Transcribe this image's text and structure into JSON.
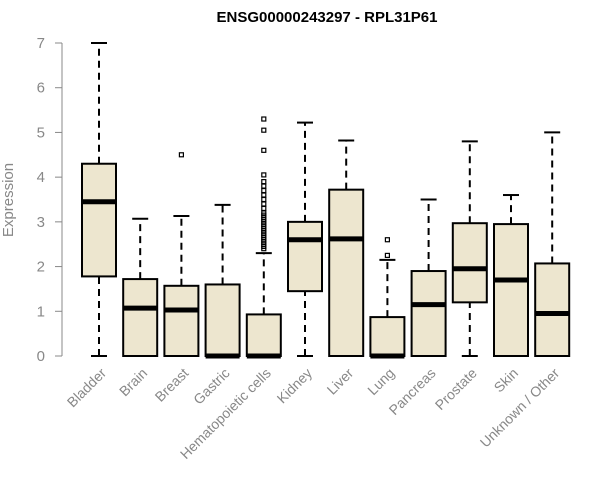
{
  "chart_data": {
    "type": "box",
    "title": "ENSG00000243297 - RPL31P61",
    "xlabel": "",
    "ylabel": "Expression",
    "ylim": [
      0,
      7
    ],
    "yticks": [
      "0",
      "1",
      "2",
      "3",
      "4",
      "5",
      "6",
      "7"
    ],
    "grid": false,
    "legend": "none",
    "colors": {
      "box_fill": "#ede6cf",
      "box_stroke": "#000000",
      "median": "#000000",
      "axis": "#888888",
      "text_axis": "#888888"
    },
    "categories": [
      "Bladder",
      "Brain",
      "Breast",
      "Gastric",
      "Hematopoietic cells",
      "Kidney",
      "Liver",
      "Lung",
      "Pancreas",
      "Prostate",
      "Skin",
      "Unknown / Other"
    ],
    "boxes": [
      {
        "min": 0,
        "q1": 1.78,
        "median": 3.45,
        "q3": 4.3,
        "max": 7.0,
        "outliers": []
      },
      {
        "min": 0,
        "q1": 0,
        "median": 1.07,
        "q3": 1.72,
        "max": 3.07,
        "outliers": []
      },
      {
        "min": 0,
        "q1": 0,
        "median": 1.03,
        "q3": 1.57,
        "max": 3.13,
        "outliers": [
          4.5
        ]
      },
      {
        "min": 0,
        "q1": 0,
        "median": 0,
        "q3": 1.6,
        "max": 3.38,
        "outliers": []
      },
      {
        "min": 0,
        "q1": 0,
        "median": 0,
        "q3": 0.93,
        "max": 2.3,
        "outliers": [
          2.4,
          2.45,
          2.5,
          2.55,
          2.6,
          2.65,
          2.7,
          2.75,
          2.8,
          2.85,
          2.9,
          2.95,
          3.0,
          3.05,
          3.1,
          3.15,
          3.2,
          3.3,
          3.4,
          3.5,
          3.6,
          3.7,
          3.8,
          3.9,
          4.05,
          4.6,
          5.05,
          5.3
        ]
      },
      {
        "min": 0,
        "q1": 1.45,
        "median": 2.6,
        "q3": 3.0,
        "max": 5.22,
        "outliers": []
      },
      {
        "min": 0,
        "q1": 0,
        "median": 2.62,
        "q3": 3.72,
        "max": 4.82,
        "outliers": []
      },
      {
        "min": 0,
        "q1": 0,
        "median": 0,
        "q3": 0.87,
        "max": 2.15,
        "outliers": [
          2.25,
          2.6
        ]
      },
      {
        "min": 0,
        "q1": 0,
        "median": 1.15,
        "q3": 1.9,
        "max": 3.5,
        "outliers": []
      },
      {
        "min": 0,
        "q1": 1.2,
        "median": 1.95,
        "q3": 2.97,
        "max": 4.8,
        "outliers": []
      },
      {
        "min": 0,
        "q1": 0,
        "median": 1.7,
        "q3": 2.95,
        "max": 3.6,
        "outliers": []
      },
      {
        "min": 0,
        "q1": 0,
        "median": 0.95,
        "q3": 2.07,
        "max": 5.0,
        "outliers": []
      }
    ]
  }
}
